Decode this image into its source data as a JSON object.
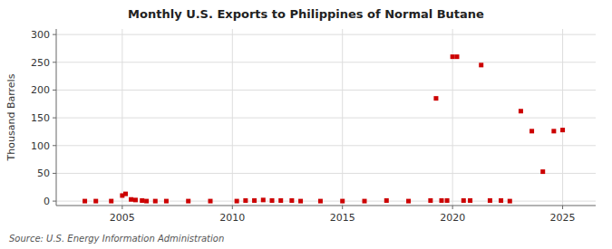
{
  "chart_data": {
    "type": "scatter",
    "title": "Monthly U.S. Exports to Philippines of Normal Butane",
    "ylabel": "Thousand Barrels",
    "annotations": [
      "Source: U.S. Energy Information Administration"
    ],
    "color": "#cc0000",
    "marker": "square",
    "grid": true,
    "xlim": [
      2002.0,
      2026.5
    ],
    "ylim": [
      -8,
      310
    ],
    "xticks": [
      2005,
      2010,
      2015,
      2020,
      2025
    ],
    "yticks": [
      0,
      50,
      100,
      150,
      200,
      250,
      300
    ],
    "x": [
      2003.3,
      2003.8,
      2004.5,
      2005.0,
      2005.15,
      2005.4,
      2005.6,
      2005.9,
      2006.1,
      2006.5,
      2007.0,
      2008.0,
      2009.0,
      2010.2,
      2010.6,
      2011.0,
      2011.4,
      2011.8,
      2012.2,
      2012.7,
      2013.1,
      2014.0,
      2015.0,
      2016.0,
      2017.0,
      2018.0,
      2019.0,
      2019.25,
      2019.5,
      2019.75,
      2020.0,
      2020.2,
      2020.5,
      2020.8,
      2021.3,
      2021.7,
      2022.2,
      2022.6,
      2023.1,
      2023.6,
      2024.1,
      2024.6,
      2025.0
    ],
    "values": [
      0,
      0,
      0,
      10,
      13,
      3,
      2,
      1,
      0,
      0,
      0,
      0,
      0,
      0,
      1,
      1,
      2,
      1,
      1,
      1,
      0,
      0,
      0,
      0,
      1,
      0,
      1,
      185,
      1,
      1,
      260,
      260,
      1,
      1,
      245,
      1,
      1,
      0,
      162,
      126,
      53,
      126,
      128
    ]
  }
}
